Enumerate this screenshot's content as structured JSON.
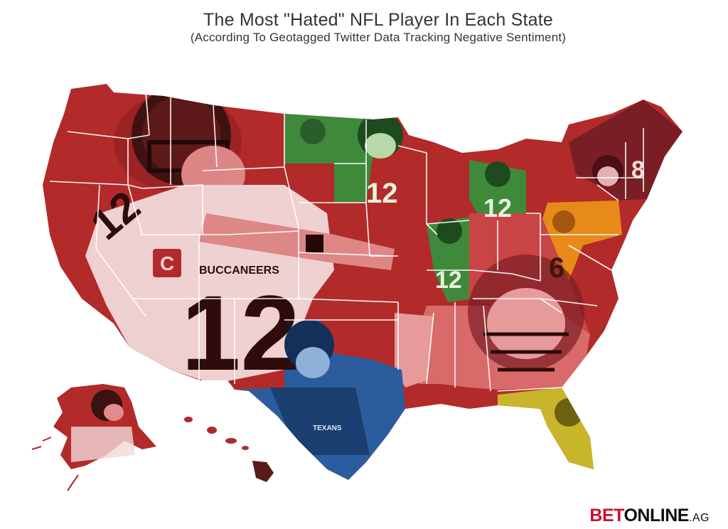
{
  "header": {
    "title": "The Most \"Hated\" NFL Player In Each State",
    "subtitle": "(According To Geotagged Twitter Data Tracking Negative Sentiment)"
  },
  "logo": {
    "bet": "BET",
    "online": "ONLINE",
    "ag": ".AG",
    "full": "BETONLINE.AG"
  },
  "jersey_text": {
    "main_number": "12",
    "shoulder_number": "12",
    "team_text": "BUCCANEERS",
    "packers_number": "12",
    "michigan_number": "12",
    "illinois_number": "12",
    "ohio_number": "6",
    "maine_number": "8",
    "texas_team": "TEXANS"
  },
  "colors": {
    "player_red": "#b22a2a",
    "player_red_light": "#d94a4a",
    "player_green": "#3f8a3a",
    "player_blue": "#2b5d9e",
    "player_orange": "#e88a1a",
    "player_yellow": "#c9b52a",
    "player_maroon": "#7a1e26",
    "player_pink": "#e79a9a",
    "background": "#ffffff",
    "border": "#ffffff",
    "text": "#333333",
    "logo_red": "#c8102e"
  },
  "regions": [
    {
      "name": "tom-brady-region",
      "color": "#b22a2a"
    },
    {
      "name": "aaron-rodgers-region",
      "color": "#3f8a3a"
    },
    {
      "name": "texas-region",
      "color": "#2b5d9e"
    },
    {
      "name": "ohio-pennsylvania-region",
      "color": "#e88a1a"
    },
    {
      "name": "florida-georgia-region",
      "color": "#c9b52a"
    },
    {
      "name": "new-england-region",
      "color": "#7a1e26"
    },
    {
      "name": "southeast-region",
      "color": "#e79a9a"
    }
  ]
}
